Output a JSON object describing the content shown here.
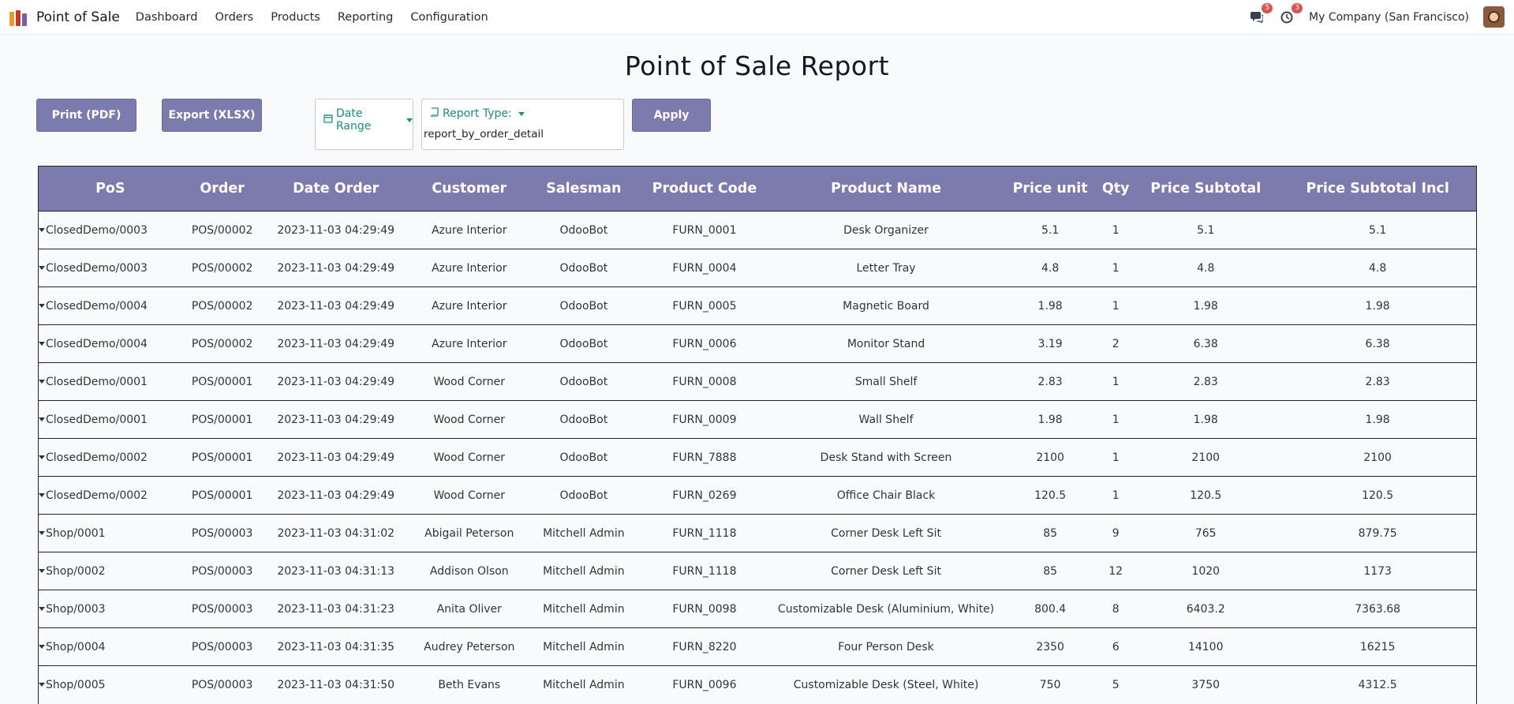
{
  "navbar": {
    "app_name": "Point of Sale",
    "menu": [
      "Dashboard",
      "Orders",
      "Products",
      "Reporting",
      "Configuration"
    ],
    "messages_badge": "5",
    "activity_badge": "3",
    "company": "My Company (San Francisco)"
  },
  "page": {
    "title": "Point of Sale Report"
  },
  "controls": {
    "print_label": "Print (PDF)",
    "export_label": "Export (XLSX)",
    "date_range_label": "Date Range",
    "report_type_label": "Report Type:",
    "report_type_value": "report_by_order_detail",
    "apply_label": "Apply"
  },
  "table": {
    "headers": [
      "PoS",
      "Order",
      "Date Order",
      "Customer",
      "Salesman",
      "Product Code",
      "Product Name",
      "Price unit",
      "Qty",
      "Price Subtotal",
      "Price Subtotal Incl"
    ],
    "rows": [
      [
        "ClosedDemo/0003",
        "POS/00002",
        "2023-11-03 04:29:49",
        "Azure Interior",
        "OdooBot",
        "FURN_0001",
        "Desk Organizer",
        "5.1",
        "1",
        "5.1",
        "5.1"
      ],
      [
        "ClosedDemo/0003",
        "POS/00002",
        "2023-11-03 04:29:49",
        "Azure Interior",
        "OdooBot",
        "FURN_0004",
        "Letter Tray",
        "4.8",
        "1",
        "4.8",
        "4.8"
      ],
      [
        "ClosedDemo/0004",
        "POS/00002",
        "2023-11-03 04:29:49",
        "Azure Interior",
        "OdooBot",
        "FURN_0005",
        "Magnetic Board",
        "1.98",
        "1",
        "1.98",
        "1.98"
      ],
      [
        "ClosedDemo/0004",
        "POS/00002",
        "2023-11-03 04:29:49",
        "Azure Interior",
        "OdooBot",
        "FURN_0006",
        "Monitor Stand",
        "3.19",
        "2",
        "6.38",
        "6.38"
      ],
      [
        "ClosedDemo/0001",
        "POS/00001",
        "2023-11-03 04:29:49",
        "Wood Corner",
        "OdooBot",
        "FURN_0008",
        "Small Shelf",
        "2.83",
        "1",
        "2.83",
        "2.83"
      ],
      [
        "ClosedDemo/0001",
        "POS/00001",
        "2023-11-03 04:29:49",
        "Wood Corner",
        "OdooBot",
        "FURN_0009",
        "Wall Shelf",
        "1.98",
        "1",
        "1.98",
        "1.98"
      ],
      [
        "ClosedDemo/0002",
        "POS/00001",
        "2023-11-03 04:29:49",
        "Wood Corner",
        "OdooBot",
        "FURN_7888",
        "Desk Stand with Screen",
        "2100",
        "1",
        "2100",
        "2100"
      ],
      [
        "ClosedDemo/0002",
        "POS/00001",
        "2023-11-03 04:29:49",
        "Wood Corner",
        "OdooBot",
        "FURN_0269",
        "Office Chair Black",
        "120.5",
        "1",
        "120.5",
        "120.5"
      ],
      [
        "Shop/0001",
        "POS/00003",
        "2023-11-03 04:31:02",
        "Abigail Peterson",
        "Mitchell Admin",
        "FURN_1118",
        "Corner Desk Left Sit",
        "85",
        "9",
        "765",
        "879.75"
      ],
      [
        "Shop/0002",
        "POS/00003",
        "2023-11-03 04:31:13",
        "Addison Olson",
        "Mitchell Admin",
        "FURN_1118",
        "Corner Desk Left Sit",
        "85",
        "12",
        "1020",
        "1173"
      ],
      [
        "Shop/0003",
        "POS/00003",
        "2023-11-03 04:31:23",
        "Anita Oliver",
        "Mitchell Admin",
        "FURN_0098",
        "Customizable Desk (Aluminium, White)",
        "800.4",
        "8",
        "6403.2",
        "7363.68"
      ],
      [
        "Shop/0004",
        "POS/00003",
        "2023-11-03 04:31:35",
        "Audrey Peterson",
        "Mitchell Admin",
        "FURN_8220",
        "Four Person Desk",
        "2350",
        "6",
        "14100",
        "16215"
      ],
      [
        "Shop/0005",
        "POS/00003",
        "2023-11-03 04:31:50",
        "Beth Evans",
        "Mitchell Admin",
        "FURN_0096",
        "Customizable Desk (Steel, White)",
        "750",
        "5",
        "3750",
        "4312.5"
      ]
    ]
  }
}
